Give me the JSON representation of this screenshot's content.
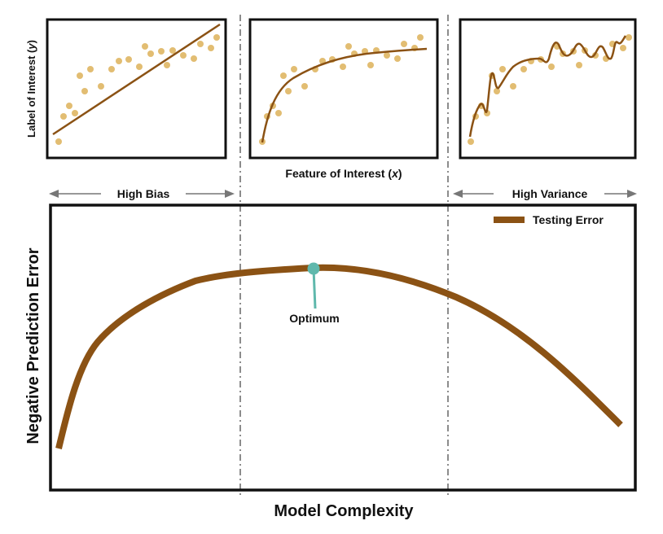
{
  "labels": {
    "y_small": "Label of Interest (",
    "y_small_var": "y",
    "y_small_close": ")",
    "x_small": "Feature of Interest (",
    "x_small_var": "x",
    "x_small_close": ")",
    "high_bias": "High Bias",
    "high_variance": "High Variance",
    "y_main": "Negative Prediction Error",
    "x_main": "Model Complexity",
    "legend": "Testing Error",
    "optimum": "Optimum"
  },
  "colors": {
    "curve": "#8b5214",
    "point": "#e2bd72",
    "optimum": "#5fb8ac",
    "frame": "#111111",
    "arrow": "#777777",
    "divider": "#666666"
  },
  "panels": [
    {
      "model": "linear"
    },
    {
      "model": "log"
    },
    {
      "model": "overfit"
    }
  ]
}
